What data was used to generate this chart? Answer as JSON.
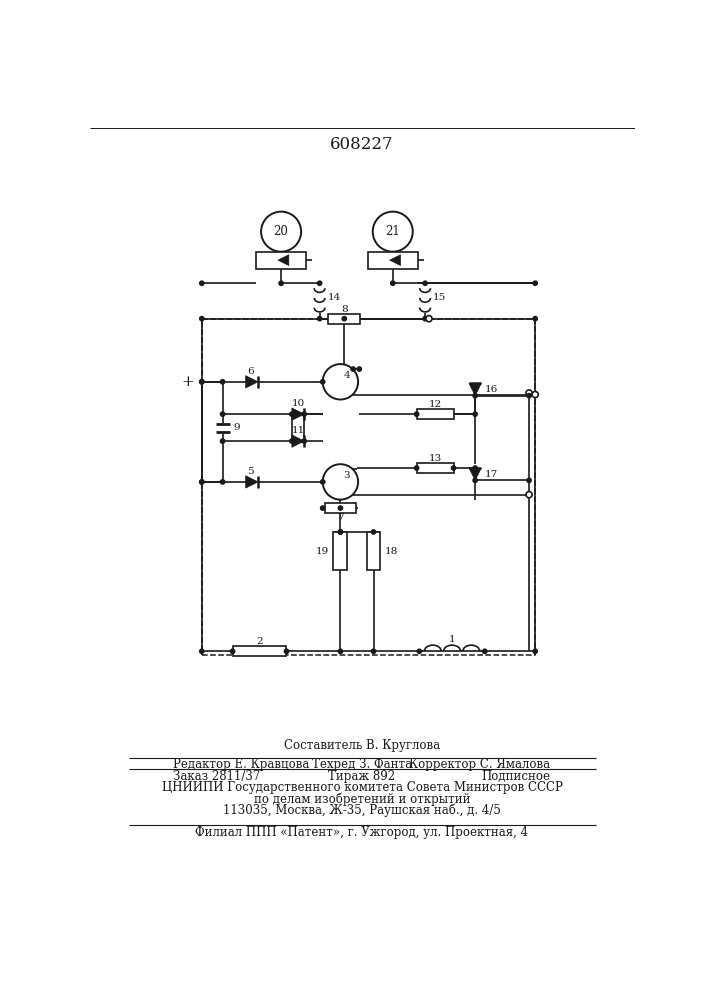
{
  "patent_number": "608227",
  "bg_color": "#ffffff",
  "lc": "#1a1a1a",
  "footer": {
    "sestavitel": "Составитель В. Круглова",
    "redaktor": "Редактор Е. Кравцова",
    "tehred": "Техред З. Фанта",
    "korrektor": "Корректор С. Ямалова",
    "zakaz": "Заказ 2811/37",
    "tirazh": "Тираж 892",
    "podpisnoe": "Подписное",
    "tsniipi": "ЦНИИПИ Государственного комитета Совета Министров СССР",
    "podelamizo": "по делам изобретений и открытий",
    "addr": "113035, Москва, Ж-35, Раушская наб., д. 4/5",
    "filial": "Филиал ППП «Патент», г. Ужгород, ул. Проектная, 4"
  }
}
